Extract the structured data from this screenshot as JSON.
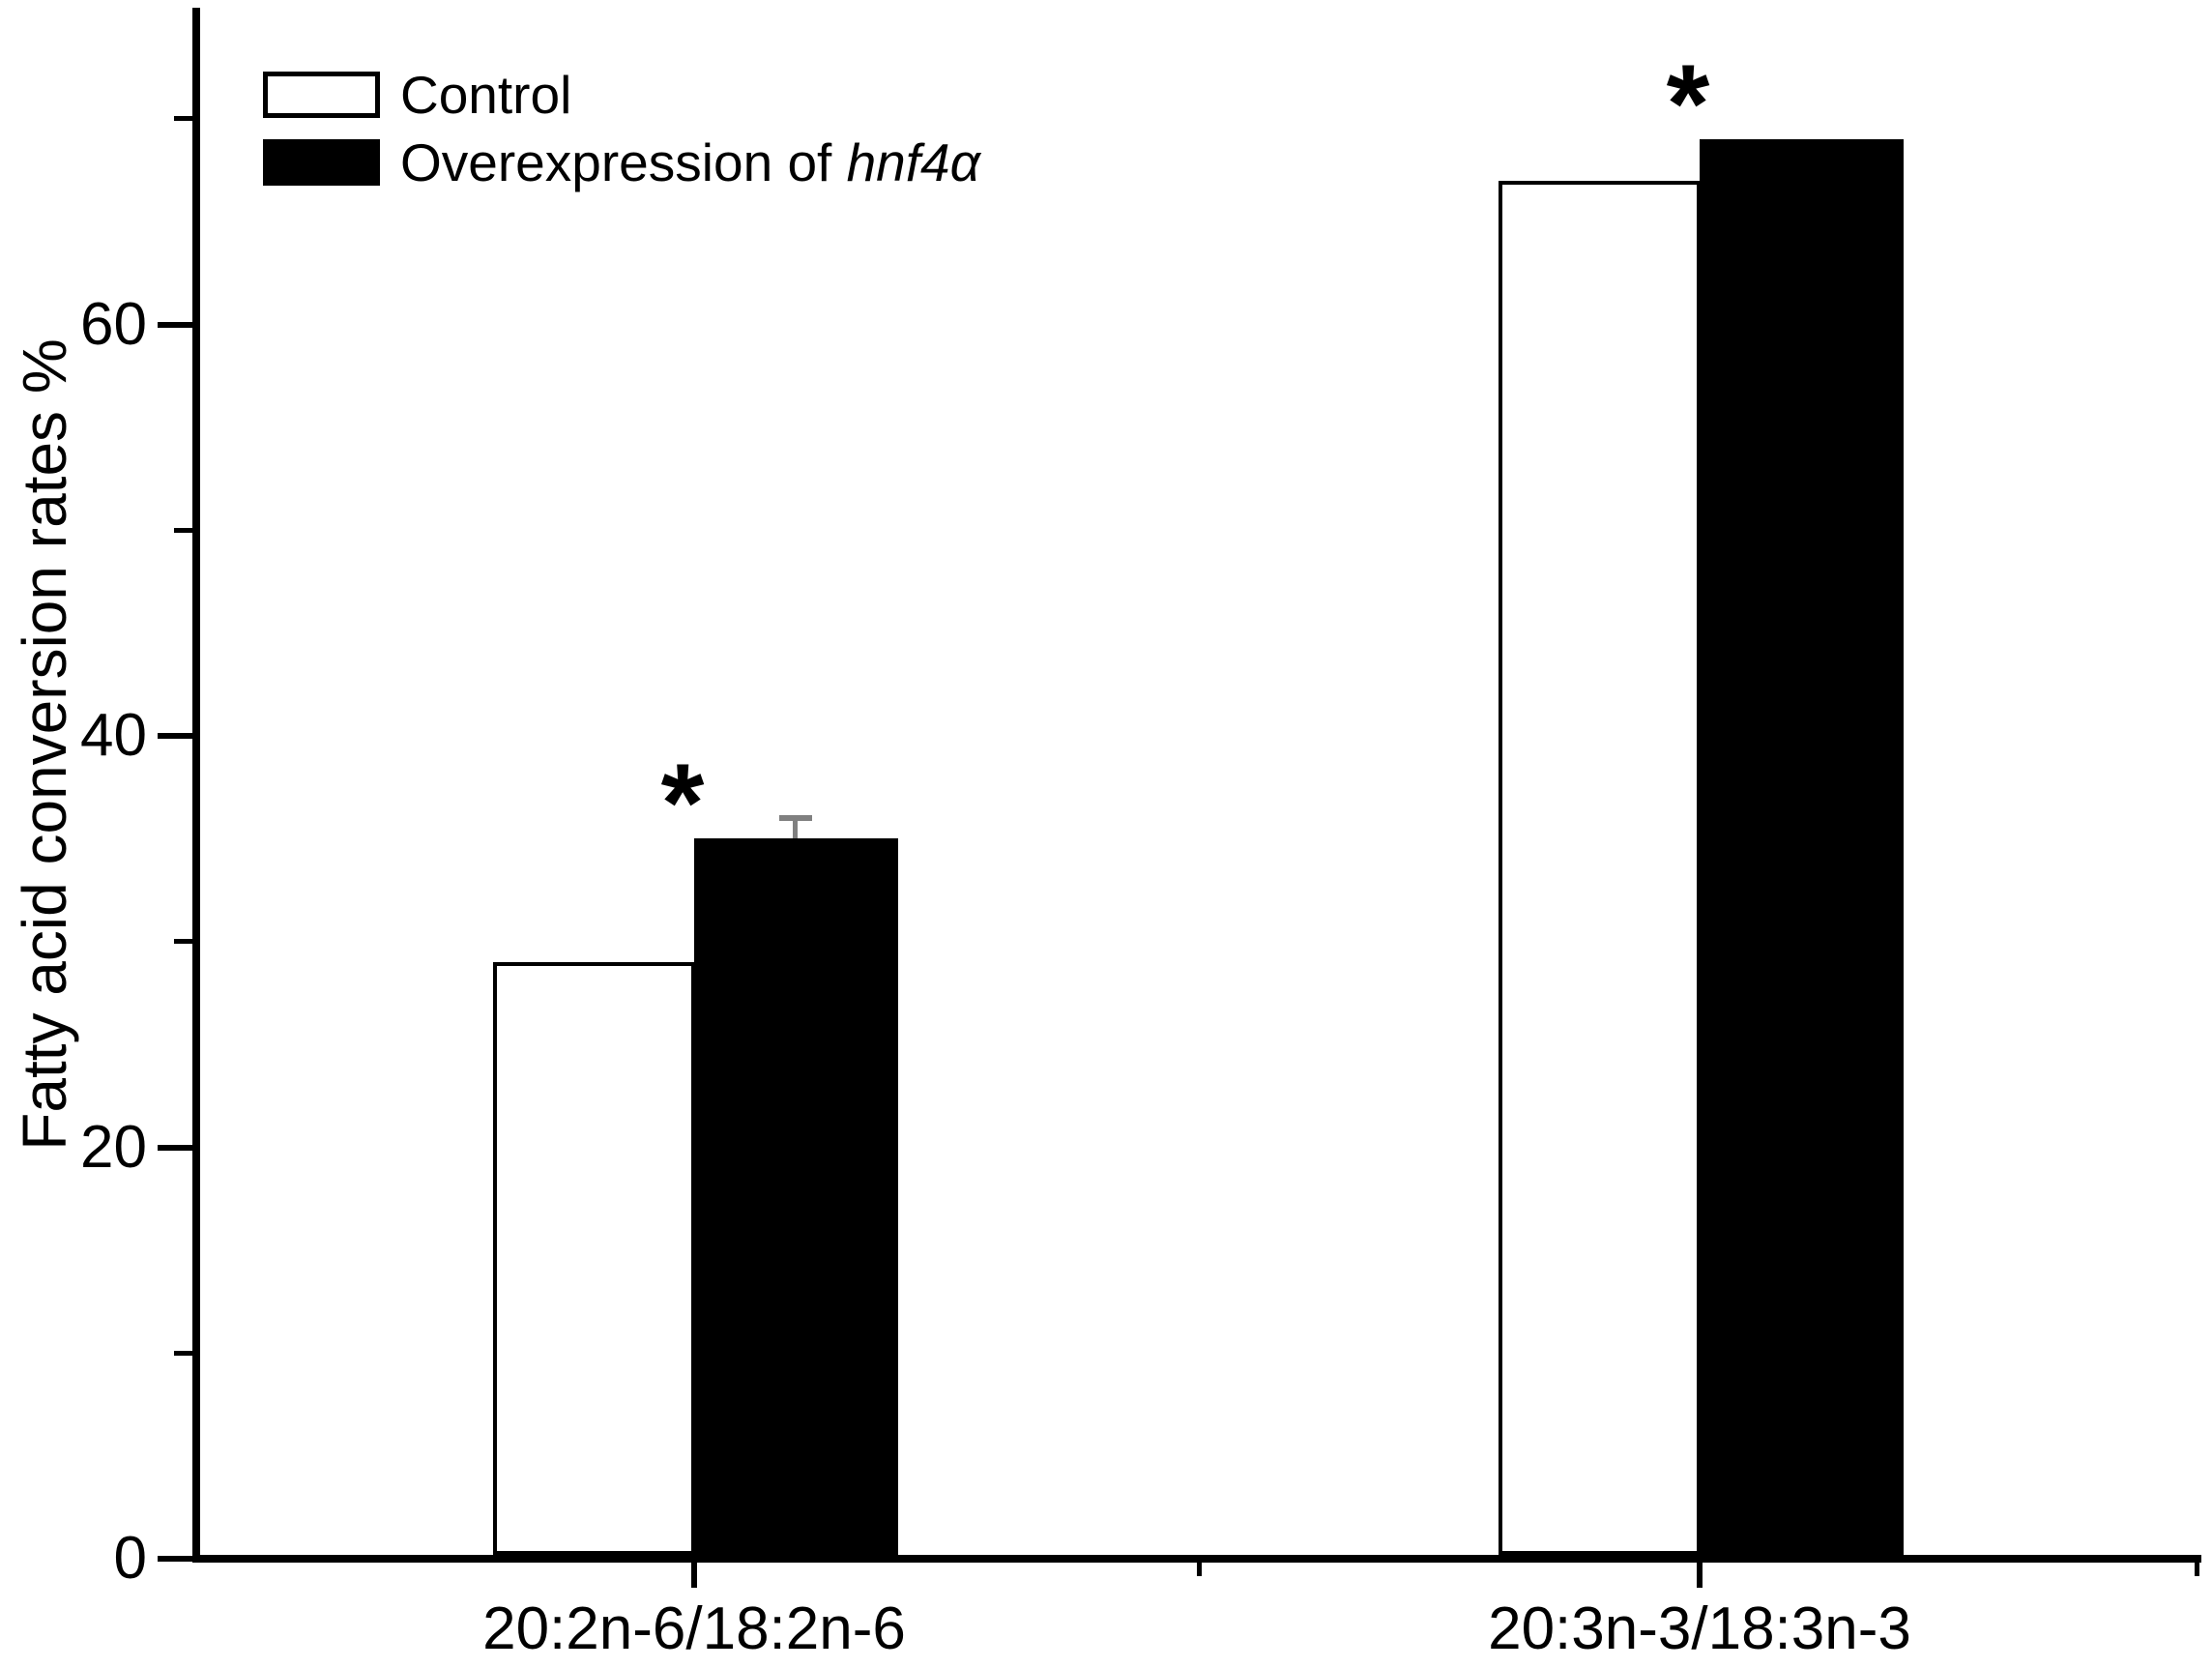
{
  "chart_data": {
    "type": "bar",
    "title": "",
    "xlabel": "",
    "ylabel": "Fatty acid conversion rates %",
    "categories": [
      "20:2n-6/18:2n-6",
      "20:3n-3/18:3n-3"
    ],
    "series": [
      {
        "name": "Control",
        "values": [
          29,
          67
        ],
        "errors": [
          null,
          null
        ],
        "significance": [
          null,
          null
        ],
        "fill": "#ffffff",
        "border": "#000000"
      },
      {
        "name": "Overexpression of hnf4α",
        "name_prefix": "Overexpression of ",
        "name_italic": "hnf4α",
        "values": [
          35,
          69
        ],
        "errors": [
          1,
          null
        ],
        "significance": [
          "*",
          "*"
        ],
        "fill": "#000000",
        "border": "#000000"
      }
    ],
    "ylim": [
      0,
      75
    ],
    "yticks_major": [
      0,
      20,
      40,
      60
    ],
    "yticks_minor": [
      10,
      30,
      50,
      70
    ],
    "grid": false,
    "legend_position": "top-left",
    "error_bar_color": "#808080",
    "significance_marker": "*"
  }
}
